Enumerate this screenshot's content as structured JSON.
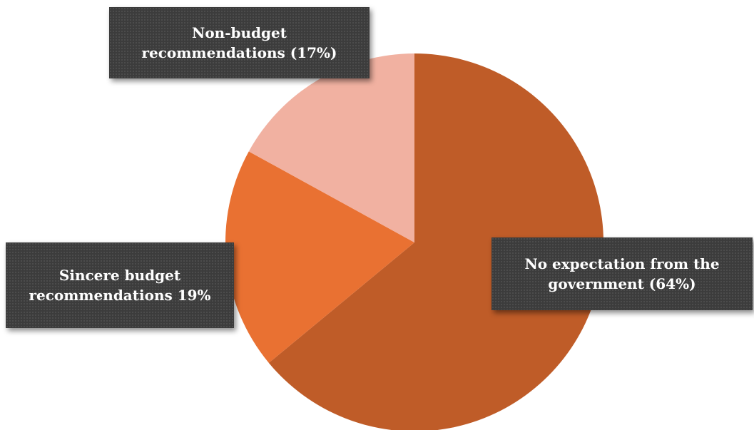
{
  "chart_data": {
    "type": "pie",
    "title": "",
    "start_angle_deg": 0,
    "direction": "clockwise",
    "slices": [
      {
        "label_line1": "No expectation from the",
        "label_line2": "government (64%)",
        "value": 64,
        "color": "#bf5c28"
      },
      {
        "label_line1": "Sincere budget",
        "label_line2": "recommendations 19%",
        "value": 19,
        "color": "#e97132"
      },
      {
        "label_line1": "Non-budget",
        "label_line2": "recommendations (17%)",
        "value": 17,
        "color": "#f1b1a1"
      }
    ],
    "legend": "none",
    "data_labels": "callout"
  }
}
